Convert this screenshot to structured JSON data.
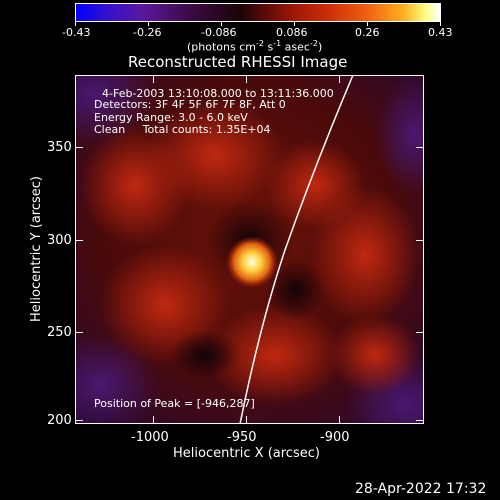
{
  "colorbar": {
    "labels": [
      "-0.43",
      "-0.26",
      "-0.086",
      "0.086",
      "0.26",
      "0.43"
    ],
    "units": "(photons cm",
    "units_exp1": "-2",
    "units_mid": " s",
    "units_exp2": "-1",
    "units_end": " asec",
    "units_exp3": "-2",
    "units_close": ")"
  },
  "plot": {
    "title": "Reconstructed RHESSI Image",
    "info": [
      "4-Feb-2003 13:10:08.000 to 13:11:36.000",
      "Detectors: 3F 4F 5F 6F 7F 8F, Att 0",
      "Energy Range: 3.0 - 6.0 keV",
      "Clean     Total counts: 1.35E+04"
    ],
    "peak_label": "Position of Peak = [-946,287]",
    "xlabel": "Heliocentric X (arcsec)",
    "ylabel": "Heliocentric Y (arcsec)",
    "xticks": [
      "-1000",
      "-950",
      "-900"
    ],
    "yticks": [
      "350",
      "300",
      "250",
      "200"
    ]
  },
  "footer": {
    "timestamp": "28-Apr-2022 17:32"
  },
  "colors": {
    "background": "#000000",
    "text": "#ffffff"
  },
  "chart_data": {
    "type": "heatmap",
    "title": "Reconstructed RHESSI Image",
    "xlabel": "Heliocentric X (arcsec)",
    "ylabel": "Heliocentric Y (arcsec)",
    "xlim": [
      -1045,
      -945
    ],
    "ylim": [
      198,
      388
    ],
    "peak": [
      -946,
      287
    ],
    "colorbar_range": [
      -0.43,
      0.43
    ]
  }
}
